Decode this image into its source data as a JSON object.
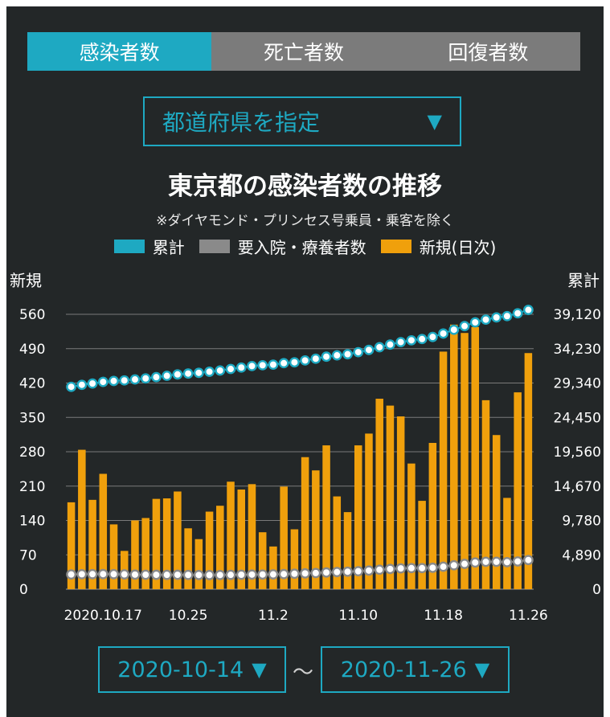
{
  "tabs": [
    {
      "label": "感染者数",
      "active": true
    },
    {
      "label": "死亡者数",
      "active": false
    },
    {
      "label": "回復者数",
      "active": false
    }
  ],
  "prefecture_select": {
    "label": "都道府県を指定",
    "arrow": "▼"
  },
  "legend": {
    "cumulative": "累計",
    "hospitalized": "要入院・療養者数",
    "new_daily": "新規(日次)"
  },
  "date_range": {
    "start": "2020-10-14",
    "end": "2020-11-26",
    "separator": "〜",
    "arrow": "▼"
  },
  "colors": {
    "accent": "#1ea9c2",
    "bar": "#f0a00c",
    "hospitalized": "#8a8a8a",
    "background": "#232728",
    "tab_inactive": "#7b7b7b"
  },
  "chart_data": {
    "type": "bar",
    "title": "東京都の感染者数の推移",
    "subtitle": "※ダイヤモンド・プリンセス号乗員・乗客を除く",
    "ylabel_left": "新規",
    "ylabel_right": "累計",
    "ylim_left": [
      0,
      560
    ],
    "ylim_right": [
      0,
      39120
    ],
    "yticks_left": [
      "0",
      "70",
      "140",
      "210",
      "280",
      "350",
      "420",
      "490",
      "560"
    ],
    "yticks_right": [
      "0",
      "4,890",
      "9,780",
      "14,670",
      "19,560",
      "24,450",
      "29,340",
      "34,230",
      "39,120"
    ],
    "xtick_labels": [
      {
        "index": 3,
        "label": "2020.10.17"
      },
      {
        "index": 11,
        "label": "10.25"
      },
      {
        "index": 19,
        "label": "11.2"
      },
      {
        "index": 27,
        "label": "11.10"
      },
      {
        "index": 35,
        "label": "11.18"
      },
      {
        "index": 43,
        "label": "11.26"
      }
    ],
    "grid": true,
    "legend_position": "top",
    "series": [
      {
        "name": "新規(日次)",
        "type": "bar",
        "axis": "left",
        "values": [
          177,
          284,
          182,
          235,
          132,
          78,
          140,
          145,
          184,
          185,
          199,
          124,
          102,
          158,
          170,
          219,
          203,
          214,
          116,
          87,
          209,
          122,
          269,
          242,
          293,
          189,
          157,
          293,
          317,
          388,
          374,
          352,
          256,
          180,
          298,
          484,
          539,
          522,
          534,
          385,
          314,
          186,
          401,
          481
        ]
      },
      {
        "name": "累計",
        "type": "line",
        "axis": "right",
        "values": [
          28800,
          29085,
          29267,
          29502,
          29634,
          29712,
          29852,
          29997,
          30181,
          30366,
          30565,
          30689,
          30791,
          30949,
          31119,
          31338,
          31541,
          31755,
          31871,
          31958,
          32167,
          32289,
          32558,
          32800,
          33093,
          33282,
          33439,
          33732,
          34049,
          34437,
          34811,
          35163,
          35419,
          35599,
          35897,
          36381,
          36920,
          37442,
          37976,
          38361,
          38675,
          38861,
          39262,
          39743
        ]
      },
      {
        "name": "要入院・療養者数",
        "type": "line",
        "axis": "right",
        "values": [
          2100,
          2130,
          2140,
          2150,
          2140,
          2110,
          2080,
          2060,
          2050,
          2040,
          2050,
          2030,
          2020,
          2010,
          2020,
          2040,
          2060,
          2080,
          2090,
          2110,
          2150,
          2200,
          2250,
          2300,
          2380,
          2440,
          2490,
          2560,
          2650,
          2770,
          2880,
          2960,
          3000,
          3000,
          3050,
          3200,
          3400,
          3600,
          3800,
          3900,
          3900,
          3850,
          3950,
          4150
        ]
      }
    ]
  }
}
